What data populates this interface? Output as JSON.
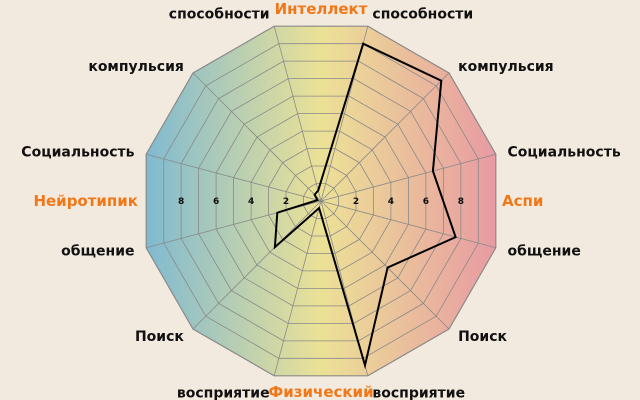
{
  "chart_data": {
    "type": "radar",
    "axis_titles": {
      "top": "Интеллект",
      "bottom": "Физический",
      "left": "Нейротипик",
      "right": "Аспи"
    },
    "spoke_labels": [
      "способности",
      "компульсия",
      "Социальность",
      "общение",
      "Поиск",
      "восприятие",
      "восприятие",
      "Поиск",
      "общение",
      "Социальность",
      "компульсия",
      "способности"
    ],
    "ticks": [
      "2",
      "4",
      "6",
      "8"
    ],
    "range": [
      0,
      10
    ],
    "series": [
      {
        "values": [
          9.0,
          9.4,
          6.4,
          7.7,
          5.2,
          9.4,
          0.4,
          3.6,
          2.5,
          0.2,
          0.5,
          0.6
        ]
      }
    ],
    "colors": {
      "left": "#7fbad1",
      "center": "#ece196",
      "right": "#e89aa2",
      "grid": "#8a8a8a",
      "line": "#000000",
      "axis_title": "#f07818"
    }
  }
}
